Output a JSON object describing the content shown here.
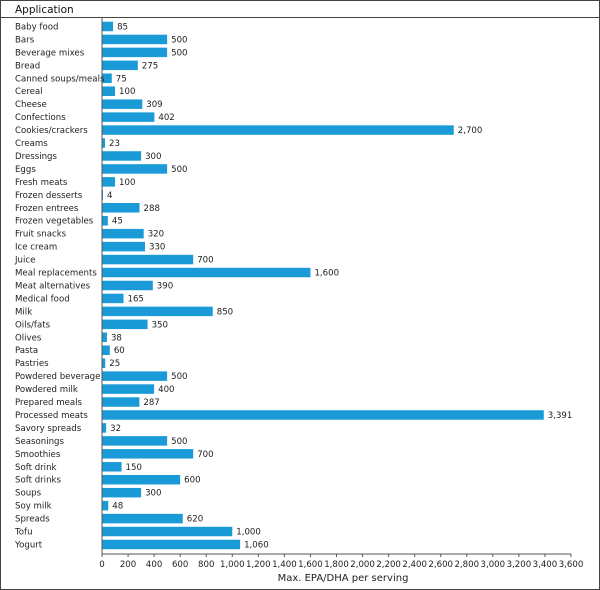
{
  "chart_data": {
    "type": "bar",
    "orientation": "horizontal",
    "header": "Application",
    "xlabel": "Max. EPA/DHA per serving",
    "xlim": [
      0,
      3600
    ],
    "xticks": [
      0,
      200,
      400,
      600,
      800,
      1000,
      1200,
      1400,
      1600,
      1800,
      2000,
      2200,
      2400,
      2600,
      2800,
      3000,
      3200,
      3400,
      3600
    ],
    "xtick_labels": [
      "0",
      "200",
      "400",
      "600",
      "800",
      "1,000",
      "1,200",
      "1,400",
      "1,600",
      "1,800",
      "2,000",
      "2,200",
      "2,400",
      "2,600",
      "2,800",
      "3,000",
      "3,200",
      "3,400",
      "3,600"
    ],
    "bar_color": "#1a9ad6",
    "grid": false,
    "categories": [
      "Baby food",
      "Bars",
      "Beverage mixes",
      "Bread",
      "Canned soups/meals",
      "Cereal",
      "Cheese",
      "Confections",
      "Cookies/crackers",
      "Creams",
      "Dressings",
      "Eggs",
      "Fresh meats",
      "Frozen desserts",
      "Frozen entrees",
      "Frozen vegetables",
      "Fruit snacks",
      "Ice cream",
      "Juice",
      "Meal replacements",
      "Meat alternatives",
      "Medical food",
      "Milk",
      "Oils/fats",
      "Olives",
      "Pasta",
      "Pastries",
      "Powdered beverage",
      "Powdered milk",
      "Prepared meals",
      "Processed meats",
      "Savory spreads",
      "Seasonings",
      "Smoothies",
      "Soft drink",
      "Soft drinks",
      "Soups",
      "Soy milk",
      "Spreads",
      "Tofu",
      "Yogurt"
    ],
    "values": [
      85,
      500,
      500,
      275,
      75,
      100,
      309,
      402,
      2700,
      23,
      300,
      500,
      100,
      4,
      288,
      45,
      320,
      330,
      700,
      1600,
      390,
      165,
      850,
      350,
      38,
      60,
      25,
      500,
      400,
      287,
      3391,
      32,
      500,
      700,
      150,
      600,
      300,
      48,
      620,
      1000,
      1060
    ],
    "value_labels": [
      "85",
      "500",
      "500",
      "275",
      "75",
      "100",
      "309",
      "402",
      "2,700",
      "23",
      "300",
      "500",
      "100",
      "4",
      "288",
      "45",
      "320",
      "330",
      "700",
      "1,600",
      "390",
      "165",
      "850",
      "350",
      "38",
      "60",
      "25",
      "500",
      "400",
      "287",
      "3,391",
      "32",
      "500",
      "700",
      "150",
      "600",
      "300",
      "48",
      "620",
      "1,000",
      "1,060"
    ]
  }
}
